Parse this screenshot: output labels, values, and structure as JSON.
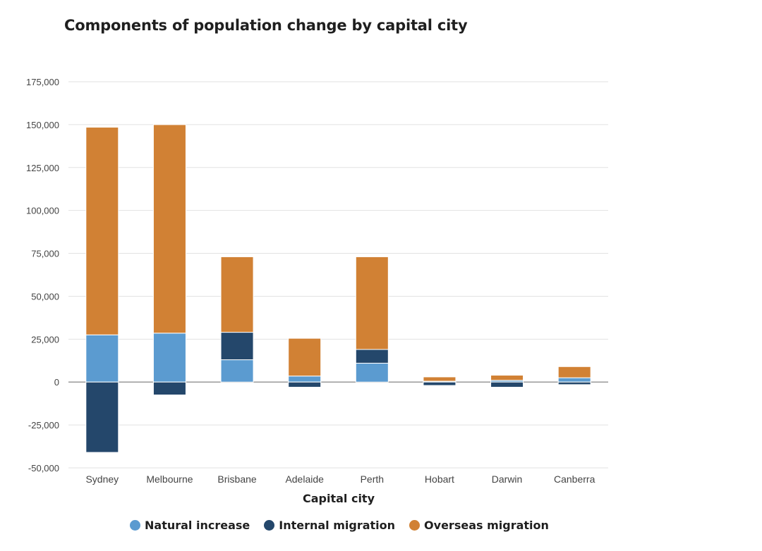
{
  "chart_data": {
    "type": "bar",
    "stacked": true,
    "title": "Components of population change by capital city",
    "xlabel": "Capital city",
    "ylabel": "",
    "ylim": [
      -50000,
      175000
    ],
    "yticks": [
      175000,
      150000,
      125000,
      100000,
      75000,
      50000,
      25000,
      0,
      -25000,
      -50000
    ],
    "ytick_labels": [
      "175,000",
      "150,000",
      "125,000",
      "100,000",
      "75,000",
      "50,000",
      "25,000",
      "0",
      "-25,000",
      "-50,000"
    ],
    "grid": true,
    "legend_position": "bottom",
    "categories": [
      "Sydney",
      "Melbourne",
      "Brisbane",
      "Adelaide",
      "Perth",
      "Hobart",
      "Darwin",
      "Canberra"
    ],
    "series": [
      {
        "name": "Natural increase",
        "color": "#5b9bd0",
        "values": [
          27500,
          28500,
          13000,
          3500,
          11000,
          500,
          1000,
          2500
        ]
      },
      {
        "name": "Internal migration",
        "color": "#24476b",
        "values": [
          -41000,
          -7500,
          16000,
          -3000,
          8000,
          -2000,
          -3000,
          -1500
        ]
      },
      {
        "name": "Overseas migration",
        "color": "#d18134",
        "values": [
          121000,
          121500,
          44000,
          22000,
          54000,
          2500,
          3000,
          6500
        ]
      }
    ]
  }
}
